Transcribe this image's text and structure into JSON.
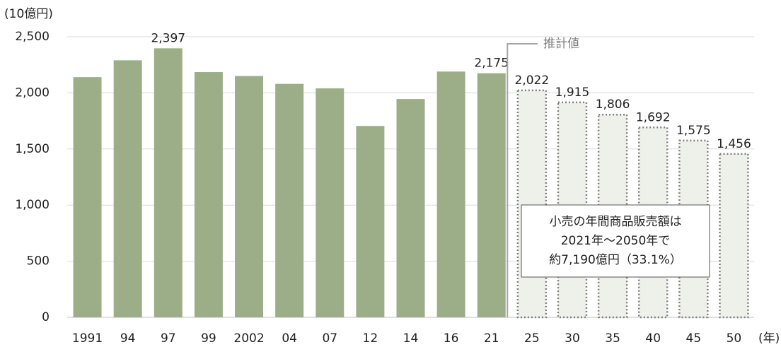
{
  "chart_data": {
    "type": "bar",
    "y_unit": "(10億円)",
    "x_unit": "(年)",
    "categories": [
      "1991",
      "94",
      "97",
      "99",
      "2002",
      "04",
      "07",
      "12",
      "14",
      "16",
      "21",
      "25",
      "30",
      "35",
      "40",
      "45",
      "50"
    ],
    "series": [
      {
        "color": "#9cae88",
        "style": "solid",
        "values": [
          2140,
          2290,
          2397,
          2185,
          2150,
          2080,
          2040,
          1705,
          1945,
          2190,
          2175,
          null,
          null,
          null,
          null,
          null,
          null
        ],
        "value_labels": [
          null,
          null,
          "2,397",
          null,
          null,
          null,
          null,
          null,
          null,
          null,
          "2,175",
          null,
          null,
          null,
          null,
          null,
          null
        ]
      },
      {
        "color": "#eef0ea",
        "style": "dotted",
        "values": [
          null,
          null,
          null,
          null,
          null,
          null,
          null,
          null,
          null,
          null,
          null,
          2022,
          1915,
          1806,
          1692,
          1575,
          1456
        ],
        "value_labels": [
          null,
          null,
          null,
          null,
          null,
          null,
          null,
          null,
          null,
          null,
          null,
          "2,022",
          "1,915",
          "1,806",
          "1,692",
          "1,575",
          "1,456"
        ]
      }
    ],
    "ylim": [
      0,
      2500
    ],
    "yticks": [
      0,
      500,
      {
        "value": 1000,
        "label": "1,000"
      },
      {
        "value": 1500,
        "label": "1,500"
      },
      {
        "value": 2000,
        "label": "2,000"
      },
      {
        "value": 2500,
        "label": "2,500"
      }
    ],
    "grid": true,
    "estimate_label": "推計値",
    "annotation": [
      "小売の年間商品販売額は",
      "2021年～2050年で",
      "約7,190億円（33.1%）"
    ]
  }
}
